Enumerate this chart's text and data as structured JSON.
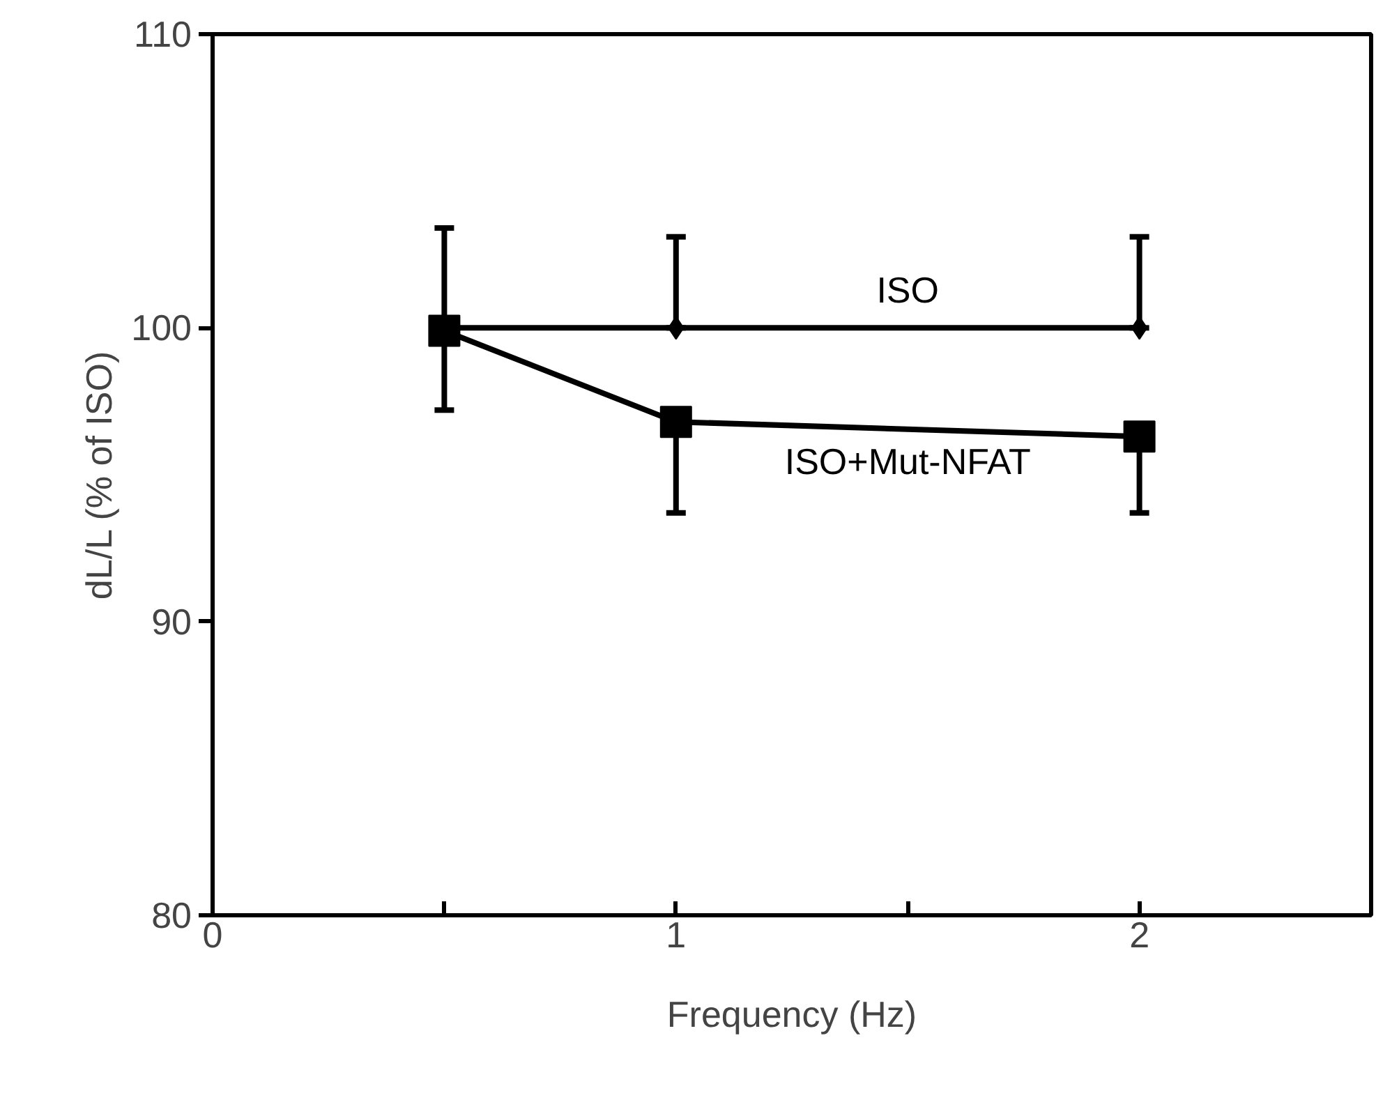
{
  "chart_data": {
    "type": "line",
    "xlabel": "Frequency (Hz)",
    "ylabel": "dL/L (% of ISO)",
    "xlim": [
      0,
      2.5
    ],
    "xticks": [
      0,
      {
        "value": 0.5,
        "label": null
      },
      1,
      {
        "value": 1.5,
        "label": null
      },
      2
    ],
    "ylim": [
      80,
      110
    ],
    "yticks": [
      80,
      90,
      100,
      110
    ],
    "grid": false,
    "legend": false,
    "series": [
      {
        "name": "ISO",
        "color": "#000000",
        "marker": "diamond",
        "x": [
          0.5,
          1,
          2
        ],
        "values": [
          100,
          100,
          100
        ],
        "errors": [
          [
            100,
            103.4
          ],
          [
            100,
            103.1
          ],
          [
            100,
            103.1
          ]
        ]
      },
      {
        "name": "ISO+Mut-NFAT",
        "color": "#000000",
        "marker": "square",
        "x": [
          0.5,
          1,
          2
        ],
        "values": [
          99.9,
          96.8,
          96.3
        ],
        "errors": [
          [
            97.2,
            99.9
          ],
          [
            93.7,
            96.8
          ],
          [
            93.7,
            96.3
          ]
        ]
      }
    ]
  }
}
